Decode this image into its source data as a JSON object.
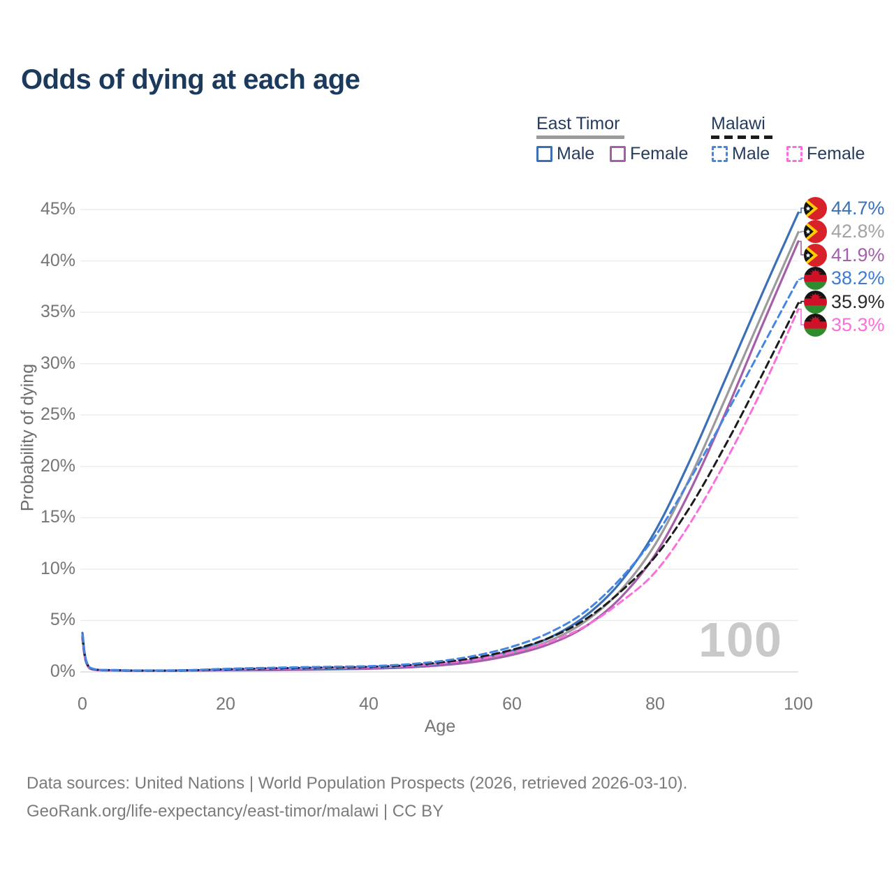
{
  "title": "Odds of dying at each age",
  "legend": {
    "groups": [
      {
        "country": "East Timor",
        "line_style": "solid",
        "underline_color": "#9b9b9b",
        "items": [
          {
            "label": "Male",
            "color": "#3b6fb6"
          },
          {
            "label": "Female",
            "color": "#a55fa8"
          }
        ]
      },
      {
        "country": "Malawi",
        "line_style": "dashed",
        "underline_color": "#1b1b1b",
        "items": [
          {
            "label": "Male",
            "color": "#4486e3"
          },
          {
            "label": "Female",
            "color": "#fb6fdc"
          }
        ]
      }
    ]
  },
  "watermark": "100",
  "footer": {
    "line1": "Data sources: United Nations | World Population Prospects (2026, retrieved 2026-03-10).",
    "line2": "GeoRank.org/life-expectancy/east-timor/malawi | CC BY"
  },
  "chart_data": {
    "type": "line",
    "title": "Odds of dying at each age",
    "xlabel": "Age",
    "ylabel": "Probability of dying",
    "xlim": [
      0,
      100
    ],
    "ylim": [
      0,
      45
    ],
    "grid": "horizontal",
    "legend_position": "top-right",
    "x_ticks": [
      0,
      20,
      40,
      60,
      80,
      100
    ],
    "x_tick_labels": [
      "0",
      "20",
      "40",
      "60",
      "80",
      "100"
    ],
    "y_ticks": [
      0,
      5,
      10,
      15,
      20,
      25,
      30,
      35,
      40,
      45
    ],
    "y_tick_labels": [
      "0%",
      "5%",
      "10%",
      "15%",
      "20%",
      "25%",
      "30%",
      "35%",
      "40%",
      "45%"
    ],
    "x": [
      0,
      1,
      5,
      10,
      15,
      20,
      25,
      30,
      35,
      40,
      45,
      50,
      55,
      60,
      65,
      70,
      75,
      80,
      85,
      90,
      95,
      100
    ],
    "series": [
      {
        "name": "East Timor Male",
        "country": "East Timor",
        "sex": "Male",
        "style": "solid",
        "color": "#3b6fb6",
        "label_color": "#3b6fb6",
        "flag": "east-timor",
        "end_value": 44.7,
        "end_label": "44.7%",
        "values": [
          3.8,
          0.4,
          0.15,
          0.12,
          0.15,
          0.2,
          0.22,
          0.25,
          0.3,
          0.38,
          0.52,
          0.78,
          1.25,
          2.05,
          3.25,
          5.3,
          8.6,
          13.7,
          20.8,
          28.8,
          36.9,
          44.7
        ]
      },
      {
        "name": "East Timor Both sexes",
        "country": "East Timor",
        "sex": "Both",
        "style": "solid",
        "color": "#9b9b9b",
        "label_color": "#a3a3a3",
        "flag": "east-timor",
        "end_value": 42.8,
        "end_label": "42.8%",
        "values": [
          3.5,
          0.37,
          0.14,
          0.11,
          0.14,
          0.18,
          0.2,
          0.23,
          0.27,
          0.34,
          0.46,
          0.7,
          1.12,
          1.85,
          2.95,
          4.8,
          7.8,
          12.4,
          19.1,
          26.9,
          34.9,
          42.8
        ]
      },
      {
        "name": "East Timor Female",
        "country": "East Timor",
        "sex": "Female",
        "style": "solid",
        "color": "#a55fa8",
        "label_color": "#a55fab",
        "flag": "east-timor",
        "end_value": 41.9,
        "end_label": "41.9%",
        "values": [
          3.2,
          0.34,
          0.13,
          0.1,
          0.12,
          0.16,
          0.18,
          0.21,
          0.25,
          0.31,
          0.42,
          0.63,
          1.0,
          1.65,
          2.65,
          4.3,
          7.1,
          11.4,
          17.8,
          25.5,
          33.8,
          41.9
        ]
      },
      {
        "name": "Malawi Male",
        "country": "Malawi",
        "sex": "Male",
        "style": "dashed",
        "color": "#4486e3",
        "label_color": "#3f7bd0",
        "flag": "malawi",
        "end_value": 38.2,
        "end_label": "38.2%",
        "values": [
          3.6,
          0.45,
          0.18,
          0.14,
          0.18,
          0.3,
          0.38,
          0.45,
          0.5,
          0.56,
          0.72,
          1.05,
          1.6,
          2.45,
          3.75,
          5.75,
          8.95,
          13.2,
          18.9,
          25.2,
          31.7,
          38.2
        ]
      },
      {
        "name": "Malawi Both sexes",
        "country": "Malawi",
        "sex": "Both",
        "style": "dashed",
        "color": "#1c1c1c",
        "label_color": "#2a2a2a",
        "flag": "malawi",
        "end_value": 35.9,
        "end_label": "35.9%",
        "values": [
          3.4,
          0.42,
          0.17,
          0.13,
          0.16,
          0.26,
          0.33,
          0.39,
          0.44,
          0.5,
          0.63,
          0.92,
          1.4,
          2.15,
          3.25,
          5.0,
          7.7,
          11.2,
          16.2,
          22.3,
          29.0,
          35.9
        ]
      },
      {
        "name": "Malawi Female",
        "country": "Malawi",
        "sex": "Female",
        "style": "dashed",
        "color": "#fb6fdc",
        "label_color": "#fb6fdc",
        "flag": "malawi",
        "end_value": 35.3,
        "end_label": "35.3%",
        "values": [
          3.1,
          0.4,
          0.16,
          0.12,
          0.15,
          0.22,
          0.28,
          0.33,
          0.38,
          0.44,
          0.56,
          0.82,
          1.22,
          1.9,
          2.85,
          4.35,
          6.7,
          9.7,
          14.6,
          20.7,
          27.6,
          35.3
        ]
      }
    ]
  }
}
